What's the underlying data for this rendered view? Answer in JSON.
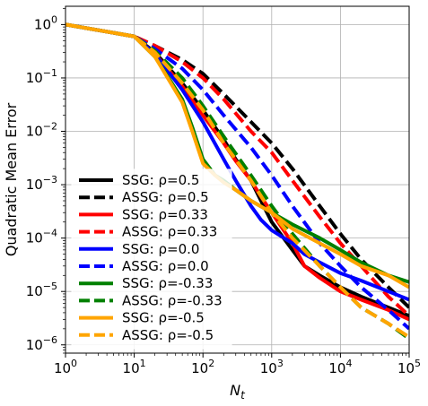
{
  "chart_data": {
    "type": "line",
    "title": "",
    "xlabel": "N_t",
    "ylabel": "Quadratic Mean Error",
    "xscale": "log",
    "yscale": "log",
    "xlim": [
      1,
      100000
    ],
    "ylim": [
      7e-07,
      2.2
    ],
    "grid": true,
    "legend_position": "lower-left",
    "x_ticks": [
      {
        "value": 1,
        "base": "10",
        "exp": "0"
      },
      {
        "value": 10,
        "base": "10",
        "exp": "1"
      },
      {
        "value": 100,
        "base": "10",
        "exp": "2"
      },
      {
        "value": 1000,
        "base": "10",
        "exp": "3"
      },
      {
        "value": 10000,
        "base": "10",
        "exp": "4"
      },
      {
        "value": 100000,
        "base": "10",
        "exp": "5"
      }
    ],
    "y_ticks": [
      {
        "value": 1,
        "base": "10",
        "exp": "0"
      },
      {
        "value": 0.1,
        "base": "10",
        "exp": "−1"
      },
      {
        "value": 0.01,
        "base": "10",
        "exp": "−2"
      },
      {
        "value": 0.001,
        "base": "10",
        "exp": "−3"
      },
      {
        "value": 0.0001,
        "base": "10",
        "exp": "−4"
      },
      {
        "value": 1e-05,
        "base": "10",
        "exp": "−5"
      },
      {
        "value": 1e-06,
        "base": "10",
        "exp": "−6"
      }
    ],
    "series": [
      {
        "name": "SSG: ρ=0.5",
        "color": "#000000",
        "dash": "solid",
        "x": [
          1,
          10,
          20,
          50,
          100,
          200,
          300,
          500,
          700,
          1000,
          2000,
          3000,
          5000,
          10000,
          20000,
          50000,
          100000
        ],
        "y": [
          1,
          0.6,
          0.3,
          0.08,
          0.025,
          0.007,
          0.003,
          0.0012,
          0.0005,
          0.0002,
          6e-05,
          3e-05,
          2e-05,
          1.2e-05,
          8e-06,
          5e-06,
          3.5e-06
        ]
      },
      {
        "name": "ASSG: ρ=0.5",
        "color": "#000000",
        "dash": "dashed",
        "x": [
          1,
          10,
          20,
          50,
          100,
          200,
          500,
          1000,
          2000,
          5000,
          10000,
          20000,
          50000,
          100000
        ],
        "y": [
          1,
          0.6,
          0.4,
          0.22,
          0.12,
          0.05,
          0.015,
          0.006,
          0.002,
          0.0004,
          0.00012,
          4e-05,
          1.2e-05,
          5e-06
        ]
      },
      {
        "name": "SSG: ρ=0.33",
        "color": "#ff0000",
        "dash": "solid",
        "x": [
          1,
          10,
          20,
          50,
          100,
          200,
          300,
          500,
          700,
          1000,
          2000,
          3000,
          5000,
          10000,
          20000,
          50000,
          100000
        ],
        "y": [
          1,
          0.6,
          0.28,
          0.07,
          0.02,
          0.006,
          0.0028,
          0.0012,
          0.0006,
          0.0003,
          8e-05,
          3e-05,
          1.8e-05,
          1e-05,
          7e-06,
          4.5e-06,
          3e-06
        ]
      },
      {
        "name": "ASSG: ρ=0.33",
        "color": "#ff0000",
        "dash": "dashed",
        "x": [
          1,
          10,
          20,
          50,
          100,
          200,
          500,
          1000,
          2000,
          5000,
          10000,
          20000,
          50000,
          100000
        ],
        "y": [
          1,
          0.6,
          0.4,
          0.2,
          0.1,
          0.04,
          0.01,
          0.004,
          0.0012,
          0.00025,
          8e-05,
          3e-05,
          8e-06,
          3.5e-06
        ]
      },
      {
        "name": "SSG: ρ=0.0",
        "color": "#0000ff",
        "dash": "solid",
        "x": [
          1,
          10,
          20,
          50,
          100,
          200,
          300,
          500,
          700,
          1000,
          2000,
          3000,
          5000,
          10000,
          20000,
          50000,
          100000
        ],
        "y": [
          1,
          0.6,
          0.28,
          0.06,
          0.015,
          0.003,
          0.0012,
          0.0004,
          0.00022,
          0.00014,
          8e-05,
          5e-05,
          3.5e-05,
          2.2e-05,
          1.6e-05,
          1e-05,
          7e-06
        ]
      },
      {
        "name": "ASSG: ρ=0.0",
        "color": "#0000ff",
        "dash": "dashed",
        "x": [
          1,
          10,
          20,
          50,
          100,
          200,
          500,
          1000,
          2000,
          5000,
          10000,
          20000,
          50000,
          100000
        ],
        "y": [
          1,
          0.6,
          0.35,
          0.15,
          0.06,
          0.02,
          0.005,
          0.0015,
          0.0004,
          8e-05,
          3e-05,
          1.2e-05,
          4.5e-06,
          2e-06
        ]
      },
      {
        "name": "SSG: ρ=-0.33",
        "color": "#008000",
        "dash": "solid",
        "x": [
          1,
          10,
          20,
          50,
          70,
          100,
          150,
          200,
          300,
          500,
          1000,
          2000,
          5000,
          10000,
          20000,
          50000,
          100000
        ],
        "y": [
          1,
          0.6,
          0.25,
          0.04,
          0.012,
          0.003,
          0.0015,
          0.0012,
          0.0008,
          0.0005,
          0.0003,
          0.00018,
          0.0001,
          6e-05,
          3.5e-05,
          2e-05,
          1.5e-05
        ]
      },
      {
        "name": "ASSG: ρ=-0.33",
        "color": "#008000",
        "dash": "dashed",
        "x": [
          1,
          10,
          20,
          50,
          100,
          200,
          500,
          1000,
          2000,
          5000,
          10000,
          20000,
          50000,
          100000
        ],
        "y": [
          1,
          0.6,
          0.32,
          0.1,
          0.03,
          0.008,
          0.0015,
          0.0004,
          0.00012,
          3e-05,
          1.2e-05,
          5e-06,
          2.5e-06,
          1.3e-06
        ]
      },
      {
        "name": "SSG: ρ=-0.5",
        "color": "#ffa500",
        "dash": "solid",
        "x": [
          1,
          10,
          20,
          50,
          70,
          100,
          150,
          200,
          300,
          500,
          1000,
          2000,
          5000,
          10000,
          20000,
          50000,
          100000
        ],
        "y": [
          1,
          0.6,
          0.25,
          0.035,
          0.01,
          0.0025,
          0.0015,
          0.0011,
          0.0008,
          0.0005,
          0.0003,
          0.00015,
          8e-05,
          5e-05,
          3e-05,
          2e-05,
          1.2e-05
        ]
      },
      {
        "name": "ASSG: ρ=-0.5",
        "color": "#ffa500",
        "dash": "dashed",
        "x": [
          1,
          10,
          20,
          50,
          100,
          200,
          500,
          1000,
          2000,
          5000,
          10000,
          20000,
          50000,
          100000
        ],
        "y": [
          1,
          0.6,
          0.3,
          0.08,
          0.025,
          0.006,
          0.0012,
          0.0003,
          0.0001,
          3e-05,
          1.2e-05,
          5e-06,
          2.5e-06,
          1.4e-06
        ]
      }
    ]
  }
}
